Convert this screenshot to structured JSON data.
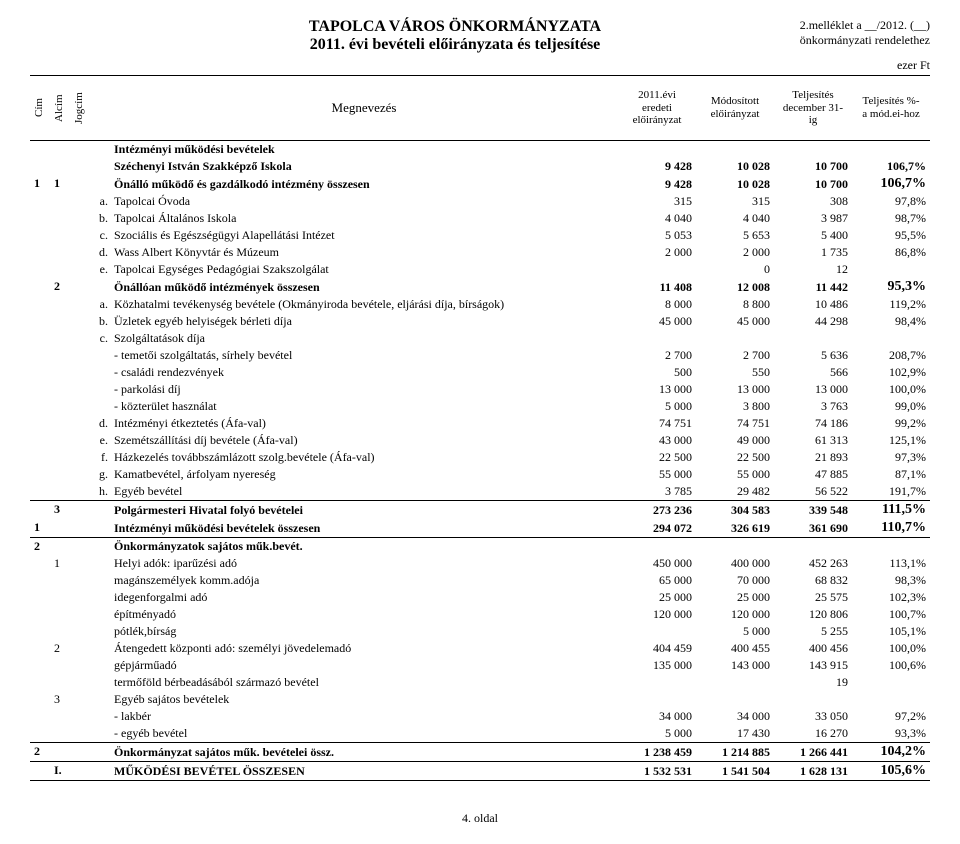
{
  "header": {
    "title1": "TAPOLCA VÁROS ÖNKORMÁNYZATA",
    "title2": "2011. évi bevételi előirányzata és teljesítése",
    "annex1": "2.melléklet a __/2012. (__)",
    "annex2": "önkormányzati rendelethez",
    "unit": "ezer Ft"
  },
  "head": {
    "cim": "Cím",
    "alcim": "Alcím",
    "jogcim": "Jogcím",
    "megnevezes": "Megnevezés",
    "col1": "2011.évi\neredeti\nelőirányzat",
    "col2": "Módosított\nelőirányzat",
    "col3": "Teljesítés\ndecember 31-\nig",
    "col4": "Teljesítés %-\na mód.ei-hoz"
  },
  "rows": [
    {
      "cim": "",
      "alcim": "",
      "jogcim": "",
      "let": "",
      "name": "Intézményi működési bevételek",
      "v": [
        "",
        "",
        "",
        ""
      ],
      "cls": "bold"
    },
    {
      "cim": "",
      "alcim": "",
      "jogcim": "",
      "let": "",
      "name": "Széchenyi István Szakképző Iskola",
      "v": [
        "9 428",
        "10 028",
        "10 700",
        "106,7%"
      ],
      "cls": "bold"
    },
    {
      "cim": "1",
      "alcim": "1",
      "jogcim": "",
      "let": "",
      "name": "Önálló működő és gazdálkodó intézmény összesen",
      "v": [
        "9 428",
        "10 028",
        "10 700",
        "106,7%"
      ],
      "cls": "section"
    },
    {
      "cim": "",
      "alcim": "",
      "jogcim": "",
      "let": "a.",
      "name": "Tapolcai Óvoda",
      "v": [
        "315",
        "315",
        "308",
        "97,8%"
      ]
    },
    {
      "cim": "",
      "alcim": "",
      "jogcim": "",
      "let": "b.",
      "name": "Tapolcai Általános Iskola",
      "v": [
        "4 040",
        "4 040",
        "3 987",
        "98,7%"
      ]
    },
    {
      "cim": "",
      "alcim": "",
      "jogcim": "",
      "let": "c.",
      "name": "Szociális és Egészségügyi Alapellátási Intézet",
      "v": [
        "5 053",
        "5 653",
        "5 400",
        "95,5%"
      ]
    },
    {
      "cim": "",
      "alcim": "",
      "jogcim": "",
      "let": "d.",
      "name": "Wass Albert Könyvtár és Múzeum",
      "v": [
        "2 000",
        "2 000",
        "1 735",
        "86,8%"
      ]
    },
    {
      "cim": "",
      "alcim": "",
      "jogcim": "",
      "let": "e.",
      "name": "Tapolcai Egységes Pedagógiai Szakszolgálat",
      "v": [
        "",
        "0",
        "12",
        ""
      ]
    },
    {
      "cim": "",
      "alcim": "2",
      "jogcim": "",
      "let": "",
      "name": "Önállóan működő intézmények összesen",
      "v": [
        "11 408",
        "12 008",
        "11 442",
        "95,3%"
      ],
      "cls": "section"
    },
    {
      "cim": "",
      "alcim": "",
      "jogcim": "",
      "let": "a.",
      "name": "Közhatalmi tevékenység bevétele (Okmányiroda bevétele, eljárási díja, bírságok)",
      "v": [
        "8 000",
        "8 800",
        "10 486",
        "119,2%"
      ]
    },
    {
      "cim": "",
      "alcim": "",
      "jogcim": "",
      "let": "b.",
      "name": "Üzletek egyéb helyiségek bérleti díja",
      "v": [
        "45 000",
        "45 000",
        "44 298",
        "98,4%"
      ]
    },
    {
      "cim": "",
      "alcim": "",
      "jogcim": "",
      "let": "c.",
      "name": "Szolgáltatások díja",
      "v": [
        "",
        "",
        "",
        ""
      ]
    },
    {
      "cim": "",
      "alcim": "",
      "jogcim": "",
      "let": "",
      "name": "- temetői szolgáltatás, sírhely bevétel",
      "v": [
        "2 700",
        "2 700",
        "5 636",
        "208,7%"
      ]
    },
    {
      "cim": "",
      "alcim": "",
      "jogcim": "",
      "let": "",
      "name": "- családi rendezvények",
      "v": [
        "500",
        "550",
        "566",
        "102,9%"
      ]
    },
    {
      "cim": "",
      "alcim": "",
      "jogcim": "",
      "let": "",
      "name": "- parkolási díj",
      "v": [
        "13 000",
        "13 000",
        "13 000",
        "100,0%"
      ]
    },
    {
      "cim": "",
      "alcim": "",
      "jogcim": "",
      "let": "",
      "name": "- közterület használat",
      "v": [
        "5 000",
        "3 800",
        "3 763",
        "99,0%"
      ]
    },
    {
      "cim": "",
      "alcim": "",
      "jogcim": "",
      "let": "d.",
      "name": "Intézményi étkeztetés (Áfa-val)",
      "v": [
        "74 751",
        "74 751",
        "74 186",
        "99,2%"
      ]
    },
    {
      "cim": "",
      "alcim": "",
      "jogcim": "",
      "let": "e.",
      "name": "Szemétszállítási díj bevétele (Áfa-val)",
      "v": [
        "43 000",
        "49 000",
        "61 313",
        "125,1%"
      ]
    },
    {
      "cim": "",
      "alcim": "",
      "jogcim": "",
      "let": "f.",
      "name": "Házkezelés továbbszámlázott szolg.bevétele (Áfa-val)",
      "v": [
        "22 500",
        "22 500",
        "21 893",
        "97,3%"
      ]
    },
    {
      "cim": "",
      "alcim": "",
      "jogcim": "",
      "let": "g.",
      "name": "Kamatbevétel, árfolyam nyereség",
      "v": [
        "55 000",
        "55 000",
        "47 885",
        "87,1%"
      ]
    },
    {
      "cim": "",
      "alcim": "",
      "jogcim": "",
      "let": "h.",
      "name": "Egyéb bevétel",
      "v": [
        "3 785",
        "29 482",
        "56 522",
        "191,7%"
      ],
      "cls": "uline"
    },
    {
      "cim": "",
      "alcim": "3",
      "jogcim": "",
      "let": "",
      "name": "Polgármesteri Hivatal folyó bevételei",
      "v": [
        "273 236",
        "304 583",
        "339 548",
        "111,5%"
      ],
      "cls": "section"
    },
    {
      "cim": "1",
      "alcim": "",
      "jogcim": "",
      "let": "",
      "name": "Intézményi működési bevételek összesen",
      "v": [
        "294 072",
        "326 619",
        "361 690",
        "110,7%"
      ],
      "cls": "section uline"
    },
    {
      "cim": "2",
      "alcim": "",
      "jogcim": "",
      "let": "",
      "name": "Önkormányzatok sajátos műk.bevét.",
      "v": [
        "",
        "",
        "",
        ""
      ],
      "cls": "bold"
    },
    {
      "cim": "",
      "alcim": "1",
      "jogcim": "",
      "let": "",
      "name": "Helyi adók:        iparűzési adó",
      "v": [
        "450 000",
        "400 000",
        "452 263",
        "113,1%"
      ]
    },
    {
      "cim": "",
      "alcim": "",
      "jogcim": "",
      "let": "",
      "name": "                        magánszemélyek komm.adója",
      "v": [
        "65 000",
        "70 000",
        "68 832",
        "98,3%"
      ]
    },
    {
      "cim": "",
      "alcim": "",
      "jogcim": "",
      "let": "",
      "name": "                        idegenforgalmi adó",
      "v": [
        "25 000",
        "25 000",
        "25 575",
        "102,3%"
      ]
    },
    {
      "cim": "",
      "alcim": "",
      "jogcim": "",
      "let": "",
      "name": "                        építményadó",
      "v": [
        "120 000",
        "120 000",
        "120 806",
        "100,7%"
      ]
    },
    {
      "cim": "",
      "alcim": "",
      "jogcim": "",
      "let": "",
      "name": "                        pótlék,bírság",
      "v": [
        "",
        "5 000",
        "5 255",
        "105,1%"
      ]
    },
    {
      "cim": "",
      "alcim": "2",
      "jogcim": "",
      "let": "",
      "name": "Átengedett központi adó:  személyi jövedelemadó",
      "v": [
        "404 459",
        "400 455",
        "400 456",
        "100,0%"
      ]
    },
    {
      "cim": "",
      "alcim": "",
      "jogcim": "",
      "let": "",
      "name": "                        gépjárműadó",
      "v": [
        "135 000",
        "143 000",
        "143 915",
        "100,6%"
      ]
    },
    {
      "cim": "",
      "alcim": "",
      "jogcim": "",
      "let": "",
      "name": "                        termőföld bérbeadásából származó bevétel",
      "v": [
        "",
        "",
        "19",
        ""
      ]
    },
    {
      "cim": "",
      "alcim": "3",
      "jogcim": "",
      "let": "",
      "name": "Egyéb sajátos bevételek",
      "v": [
        "",
        "",
        "",
        ""
      ]
    },
    {
      "cim": "",
      "alcim": "",
      "jogcim": "",
      "let": "",
      "name": "- lakbér",
      "v": [
        "34 000",
        "34 000",
        "33 050",
        "97,2%"
      ]
    },
    {
      "cim": "",
      "alcim": "",
      "jogcim": "",
      "let": "",
      "name": "- egyéb bevétel",
      "v": [
        "5 000",
        "17 430",
        "16 270",
        "93,3%"
      ],
      "cls": "uline"
    },
    {
      "cim": "2",
      "alcim": "",
      "jogcim": "",
      "let": "",
      "name": "Önkormányzat sajátos műk. bevételei össz.",
      "v": [
        "1 238 459",
        "1 214 885",
        "1 266 441",
        "104,2%"
      ],
      "cls": "section uline"
    },
    {
      "cim": "",
      "alcim": "I.",
      "jogcim": "",
      "let": "",
      "name": "MŰKÖDÉSI BEVÉTEL ÖSSZESEN",
      "v": [
        "1 532 531",
        "1 541 504",
        "1 628 131",
        "105,6%"
      ],
      "cls": "section uline"
    }
  ],
  "footer": "4. oldal"
}
